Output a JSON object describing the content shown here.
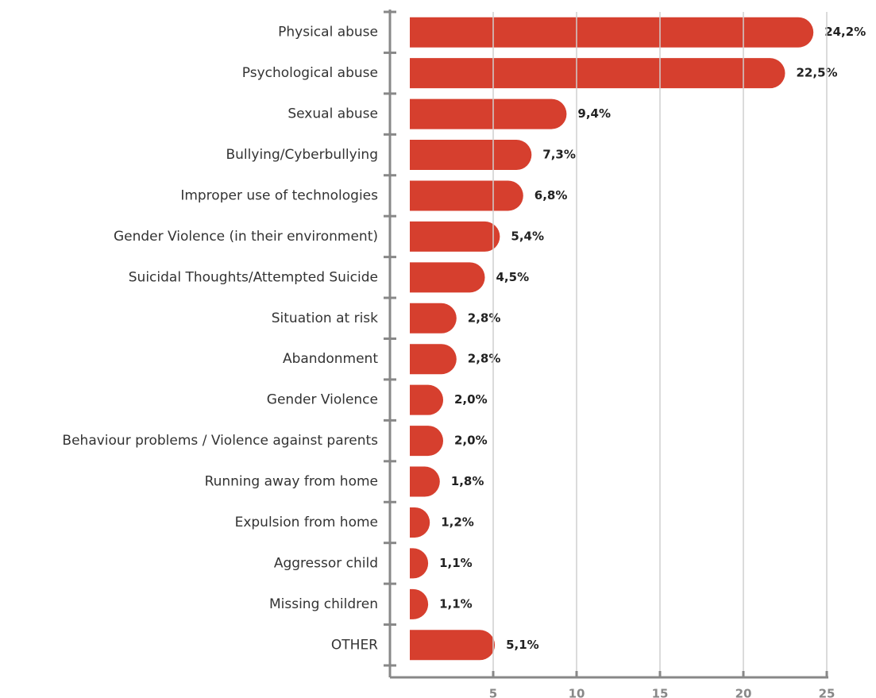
{
  "chart_data": {
    "type": "barh",
    "categories": [
      "Physical abuse",
      "Psychological abuse",
      "Sexual abuse",
      "Bullying/Cyberbullying",
      "Improper use of technologies",
      "Gender Violence (in their environment)",
      "Suicidal Thoughts/Attempted Suicide",
      "Situation at risk",
      "Abandonment",
      "Gender Violence",
      "Behaviour problems / Violence against parents",
      "Running away from home",
      "Expulsion from home",
      "Aggressor child",
      "Missing children",
      "OTHER"
    ],
    "values": [
      24.2,
      22.5,
      9.4,
      7.3,
      6.8,
      5.4,
      4.5,
      2.8,
      2.8,
      2.0,
      2.0,
      1.8,
      1.2,
      1.1,
      1.1,
      5.1
    ],
    "value_labels": [
      "24,2%",
      "22,5%",
      "9,4%",
      "7,3%",
      "6,8%",
      "5,4%",
      "4,5%",
      "2,8%",
      "2,8%",
      "2,0%",
      "2,0%",
      "1,8%",
      "1,2%",
      "1,1%",
      "1,1%",
      "5,1%"
    ],
    "color": "#d63f2e",
    "xlim": [
      0,
      25
    ],
    "xticks": [
      5,
      10,
      15,
      20,
      25
    ],
    "grid": true
  }
}
